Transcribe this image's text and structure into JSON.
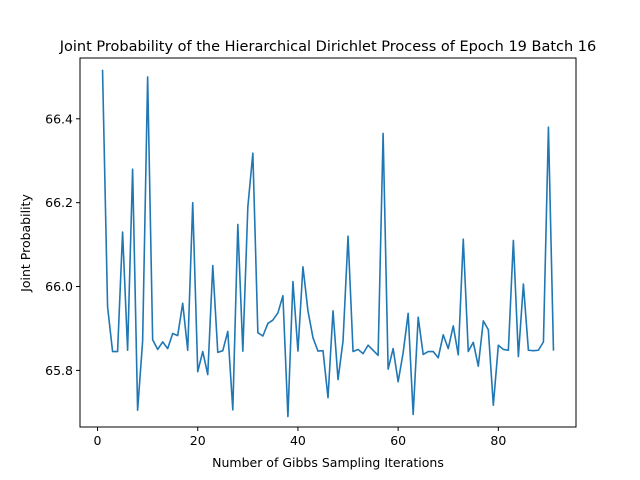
{
  "chart_data": {
    "type": "line",
    "title": "Joint Probability of the Hierarchical Dirichlet Process of Epoch 19 Batch 16",
    "xlabel": "Number of Gibbs Sampling Iterations",
    "ylabel": "Joint Probability",
    "xlim": [
      -3.5,
      95.5
    ],
    "ylim": [
      65.665,
      66.545
    ],
    "xticks": [
      0,
      20,
      40,
      60,
      80
    ],
    "yticks": [
      65.8,
      66.0,
      66.2,
      66.4
    ],
    "ytick_labels": [
      "65.8",
      "66.0",
      "66.2",
      "66.4"
    ],
    "grid": false,
    "series": [
      {
        "color": "#1f77b4",
        "x": [
          1,
          2,
          3,
          4,
          5,
          6,
          7,
          8,
          9,
          10,
          11,
          12,
          13,
          14,
          15,
          16,
          17,
          18,
          19,
          20,
          21,
          22,
          23,
          24,
          25,
          26,
          27,
          28,
          29,
          30,
          31,
          32,
          33,
          34,
          35,
          36,
          37,
          38,
          39,
          40,
          41,
          42,
          43,
          44,
          45,
          46,
          47,
          48,
          49,
          50,
          51,
          52,
          53,
          54,
          55,
          56,
          57,
          58,
          59,
          60,
          61,
          62,
          63,
          64,
          65,
          66,
          67,
          68,
          69,
          70,
          71,
          72,
          73,
          74,
          75,
          76,
          77,
          78,
          79,
          80,
          81,
          82,
          83,
          84,
          85,
          86,
          87,
          88,
          89,
          90,
          91
        ],
        "values": [
          66.515,
          65.952,
          65.845,
          65.845,
          66.13,
          65.848,
          66.28,
          65.705,
          65.87,
          66.5,
          65.873,
          65.85,
          65.868,
          65.852,
          65.888,
          65.883,
          65.96,
          65.848,
          66.2,
          65.797,
          65.845,
          65.79,
          66.05,
          65.843,
          65.847,
          65.893,
          65.706,
          66.148,
          65.846,
          66.19,
          66.318,
          65.89,
          65.882,
          65.912,
          65.92,
          65.937,
          65.978,
          65.69,
          66.012,
          65.846,
          66.047,
          65.942,
          65.878,
          65.846,
          65.847,
          65.735,
          65.942,
          65.778,
          65.87,
          66.12,
          65.845,
          65.85,
          65.84,
          65.86,
          65.848,
          65.836,
          66.365,
          65.803,
          65.852,
          65.773,
          65.842,
          65.936,
          65.695,
          65.927,
          65.838,
          65.845,
          65.845,
          65.83,
          65.885,
          65.852,
          65.906,
          65.837,
          66.113,
          65.845,
          65.867,
          65.81,
          65.918,
          65.897,
          65.717,
          65.86,
          65.85,
          65.848,
          66.11,
          65.833,
          66.006,
          65.848,
          65.847,
          65.848,
          65.868,
          66.38,
          65.849
        ]
      }
    ]
  }
}
